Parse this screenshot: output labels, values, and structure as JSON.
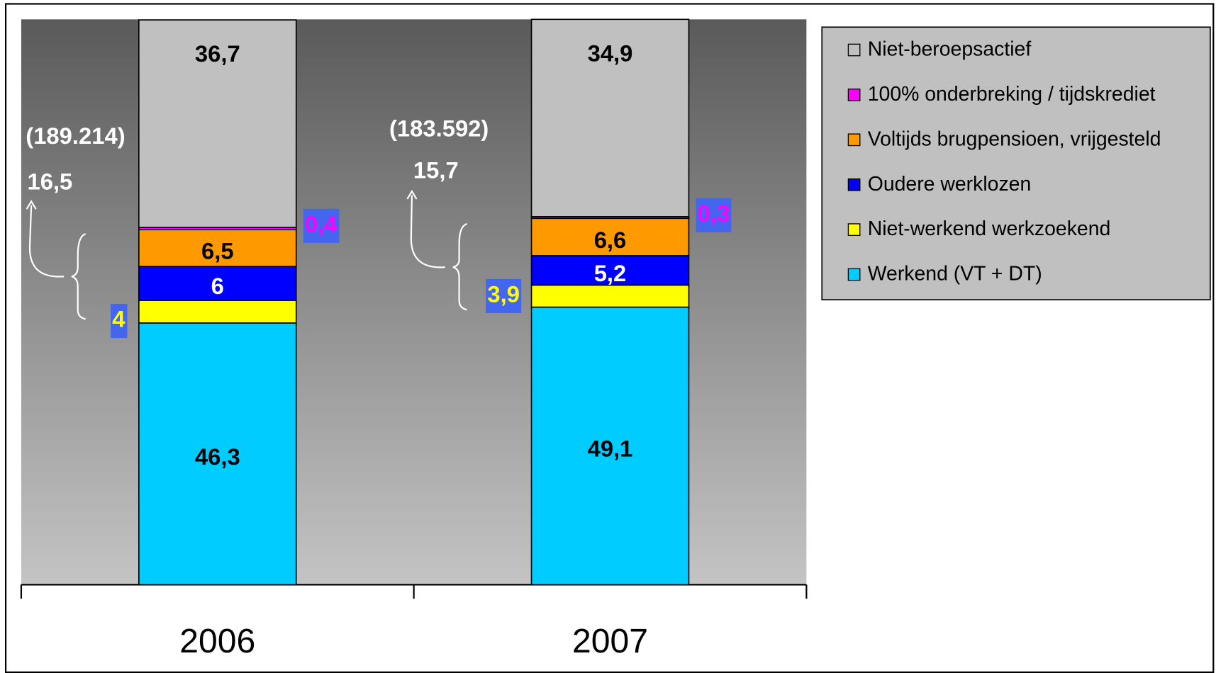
{
  "chart_data": {
    "type": "stacked_bar",
    "categories": [
      "2006",
      "2007"
    ],
    "ylim": [
      0,
      100
    ],
    "series": [
      {
        "name": "Werkend (VT + DT)",
        "color": "#00ccff",
        "values": [
          46.3,
          49.1
        ],
        "value_labels": [
          "46,3",
          "49,1"
        ]
      },
      {
        "name": "Niet-werkend werkzoekend",
        "color": "#ffff00",
        "values": [
          4,
          3.9
        ],
        "value_labels": [
          "4",
          "3,9"
        ]
      },
      {
        "name": "Oudere werklozen",
        "color": "#0000ff",
        "values": [
          6,
          5.2
        ],
        "value_labels": [
          "6",
          "5,2"
        ]
      },
      {
        "name": "Voltijds brugpensioen, vrijgesteld",
        "color": "#ff9900",
        "values": [
          6.5,
          6.6
        ],
        "value_labels": [
          "6,5",
          "6,6"
        ]
      },
      {
        "name": "100% onderbreking / tijdskrediet",
        "color": "#ff00ff",
        "values": [
          0.4,
          0.3
        ],
        "value_labels": [
          "0,4",
          "0,3"
        ]
      },
      {
        "name": "Niet-beroepsactief",
        "color": "#c0c0c0",
        "values": [
          36.7,
          34.9
        ],
        "value_labels": [
          "36,7",
          "34,9"
        ]
      }
    ],
    "annotations": [
      "(189.214)",
      "16,5",
      "(183.592)",
      "15,7"
    ]
  }
}
